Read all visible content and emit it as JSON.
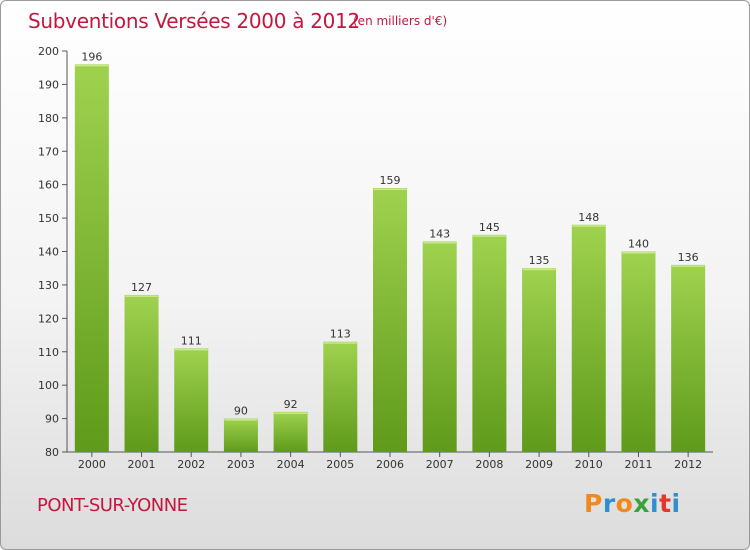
{
  "header": {
    "title": "Subventions Versées 2000 à 2012",
    "unit": "(en milliers d'€)"
  },
  "footer": {
    "place": "PONT-SUR-YONNE",
    "logo_letters": [
      "P",
      "r",
      "o",
      "x",
      "i",
      "t",
      "i"
    ]
  },
  "colors": {
    "title": "#c4173f",
    "bar_top": "#9fd24f",
    "bar_bottom": "#5f9a1a",
    "logo": [
      "#f08a1d",
      "#2f8fd0",
      "#f08a1d",
      "#3aa33a",
      "#2f8fd0",
      "#e2372a",
      "#2f8fd0"
    ]
  },
  "chart_data": {
    "type": "bar",
    "categories": [
      "2000",
      "2001",
      "2002",
      "2003",
      "2004",
      "2005",
      "2006",
      "2007",
      "2008",
      "2009",
      "2010",
      "2011",
      "2012"
    ],
    "values": [
      196,
      127,
      111,
      90,
      92,
      113,
      159,
      143,
      145,
      135,
      148,
      140,
      136
    ],
    "title": "Subventions Versées 2000 à 2012",
    "xlabel": "",
    "ylabel": "",
    "ylim": [
      80,
      200
    ],
    "yticks": [
      80,
      90,
      100,
      110,
      120,
      130,
      140,
      150,
      160,
      170,
      180,
      190,
      200
    ],
    "grid": false,
    "legend": "none"
  }
}
